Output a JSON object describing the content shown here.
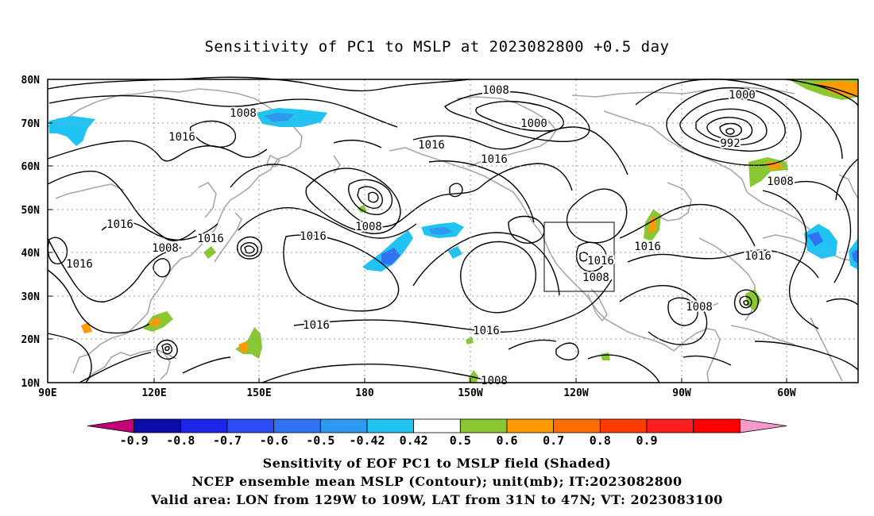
{
  "title": "Sensitivity of PC1 to MSLP at 2023082800 +0.5 day",
  "lat_labels": [
    "80N",
    "70N",
    "60N",
    "50N",
    "40N",
    "30N",
    "20N",
    "10N"
  ],
  "lon_labels": [
    "90E",
    "120E",
    "150E",
    "180",
    "150W",
    "120W",
    "90W",
    "60W"
  ],
  "contour_labels": [
    "1008",
    "1016",
    "1016",
    "1016",
    "1008",
    "1016",
    "1008",
    "1016",
    "1016",
    "1008",
    "1000",
    "1016",
    "1016",
    "1000",
    "992",
    "1008",
    "1016",
    "1016",
    "1008",
    "1016",
    "1008",
    "1016",
    "1008"
  ],
  "colorbar": {
    "colors": [
      "#c2007a",
      "#0c0ca8",
      "#1d26e6",
      "#2d4bf5",
      "#2f73f2",
      "#2e99ef",
      "#20c3f2",
      "#ffffff",
      "#8ac833",
      "#ff9a00",
      "#ff6d00",
      "#ff3c00",
      "#ff1e1e",
      "#ff0000",
      "#f59acb"
    ],
    "tick_labels": [
      "-0.9",
      "-0.8",
      "-0.7",
      "-0.6",
      "-0.5",
      "-0.42",
      "0.42",
      "0.5",
      "0.6",
      "0.7",
      "0.8",
      "0.9"
    ]
  },
  "captions": [
    "Sensitivity of EOF PC1 to MSLP field (Shaded)",
    "NCEP ensemble mean MSLP (Contour); unit(mb); IT:2023082800",
    "Valid area: LON from 129W to 109W, LAT from 31N to 47N; VT: 2023083100"
  ]
}
